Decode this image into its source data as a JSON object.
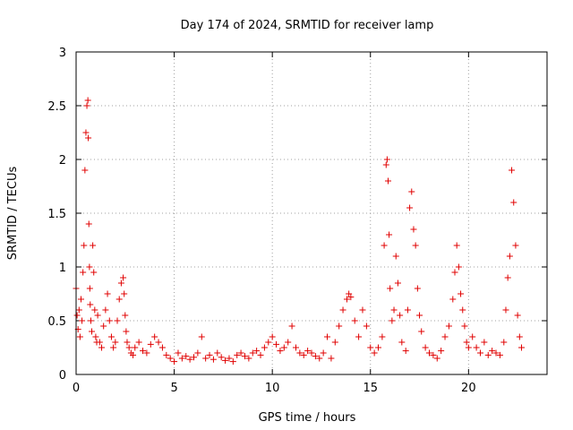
{
  "chart_data": {
    "type": "scatter",
    "title": "Day 174 of 2024, SRMTID for receiver lamp",
    "xlabel": "GPS time / hours",
    "ylabel": "SRMTID / TECUs",
    "xlim": [
      0,
      24
    ],
    "ylim": [
      0,
      3
    ],
    "xticks": [
      0,
      5,
      10,
      15,
      20
    ],
    "xtick_labels": [
      "0",
      "5",
      "10",
      "15",
      "20"
    ],
    "yticks": [
      0,
      0.5,
      1,
      1.5,
      2,
      2.5,
      3
    ],
    "ytick_labels": [
      "0",
      "0.5",
      "1",
      "1.5",
      "2",
      "2.5",
      "3"
    ],
    "grid": true,
    "marker": "+",
    "series": [
      {
        "name": "SRMTID",
        "color": "#e00000",
        "x": [
          0.0,
          0.05,
          0.1,
          0.15,
          0.2,
          0.25,
          0.3,
          0.35,
          0.4,
          0.45,
          0.5,
          0.55,
          0.6,
          0.62,
          0.65,
          0.68,
          0.7,
          0.72,
          0.75,
          0.8,
          0.85,
          0.9,
          0.95,
          1.0,
          1.05,
          1.1,
          1.2,
          1.3,
          1.4,
          1.5,
          1.6,
          1.7,
          1.8,
          1.9,
          2.0,
          2.1,
          2.2,
          2.3,
          2.4,
          2.45,
          2.5,
          2.55,
          2.6,
          2.7,
          2.8,
          2.9,
          3.0,
          3.2,
          3.4,
          3.6,
          3.8,
          4.0,
          4.2,
          4.4,
          4.6,
          4.8,
          5.0,
          5.2,
          5.4,
          5.6,
          5.8,
          6.0,
          6.2,
          6.4,
          6.6,
          6.8,
          7.0,
          7.2,
          7.4,
          7.6,
          7.8,
          8.0,
          8.2,
          8.4,
          8.6,
          8.8,
          9.0,
          9.2,
          9.4,
          9.6,
          9.8,
          10.0,
          10.2,
          10.4,
          10.6,
          10.8,
          11.0,
          11.2,
          11.4,
          11.6,
          11.8,
          12.0,
          12.2,
          12.4,
          12.6,
          12.8,
          13.0,
          13.2,
          13.4,
          13.6,
          13.8,
          13.9,
          14.0,
          14.2,
          14.4,
          14.6,
          14.8,
          15.0,
          15.2,
          15.4,
          15.6,
          15.7,
          15.8,
          15.85,
          15.9,
          15.95,
          16.0,
          16.1,
          16.2,
          16.3,
          16.4,
          16.5,
          16.6,
          16.8,
          16.9,
          17.0,
          17.1,
          17.2,
          17.3,
          17.4,
          17.5,
          17.6,
          17.8,
          18.0,
          18.2,
          18.4,
          18.6,
          18.8,
          19.0,
          19.2,
          19.3,
          19.4,
          19.5,
          19.6,
          19.7,
          19.8,
          19.9,
          20.0,
          20.2,
          20.4,
          20.6,
          20.8,
          21.0,
          21.2,
          21.4,
          21.6,
          21.8,
          21.9,
          22.0,
          22.1,
          22.2,
          22.3,
          22.4,
          22.5,
          22.6,
          22.7
        ],
        "y": [
          0.8,
          0.55,
          0.42,
          0.6,
          0.35,
          0.7,
          0.5,
          0.95,
          1.2,
          1.9,
          2.25,
          2.5,
          2.55,
          2.2,
          1.4,
          1.0,
          0.8,
          0.65,
          0.5,
          0.4,
          1.2,
          0.95,
          0.6,
          0.35,
          0.3,
          0.55,
          0.3,
          0.25,
          0.45,
          0.6,
          0.75,
          0.5,
          0.35,
          0.25,
          0.3,
          0.5,
          0.7,
          0.85,
          0.9,
          0.75,
          0.55,
          0.4,
          0.3,
          0.25,
          0.2,
          0.18,
          0.25,
          0.3,
          0.22,
          0.2,
          0.28,
          0.35,
          0.3,
          0.25,
          0.18,
          0.15,
          0.12,
          0.2,
          0.15,
          0.17,
          0.14,
          0.16,
          0.2,
          0.35,
          0.15,
          0.18,
          0.14,
          0.2,
          0.16,
          0.13,
          0.15,
          0.12,
          0.18,
          0.2,
          0.17,
          0.15,
          0.2,
          0.22,
          0.18,
          0.25,
          0.3,
          0.35,
          0.28,
          0.22,
          0.25,
          0.3,
          0.45,
          0.25,
          0.2,
          0.18,
          0.22,
          0.2,
          0.17,
          0.15,
          0.2,
          0.35,
          0.15,
          0.3,
          0.45,
          0.6,
          0.7,
          0.75,
          0.72,
          0.5,
          0.35,
          0.6,
          0.45,
          0.25,
          0.2,
          0.25,
          0.35,
          1.2,
          1.95,
          2.0,
          1.8,
          1.3,
          0.8,
          0.5,
          0.6,
          1.1,
          0.85,
          0.55,
          0.3,
          0.22,
          0.6,
          1.55,
          1.7,
          1.35,
          1.2,
          0.8,
          0.55,
          0.4,
          0.25,
          0.2,
          0.18,
          0.15,
          0.22,
          0.35,
          0.45,
          0.7,
          0.95,
          1.2,
          1.0,
          0.75,
          0.6,
          0.45,
          0.3,
          0.25,
          0.35,
          0.25,
          0.2,
          0.3,
          0.18,
          0.22,
          0.2,
          0.18,
          0.3,
          0.6,
          0.9,
          1.1,
          1.9,
          1.6,
          1.2,
          0.55,
          0.35,
          0.25
        ]
      }
    ]
  }
}
